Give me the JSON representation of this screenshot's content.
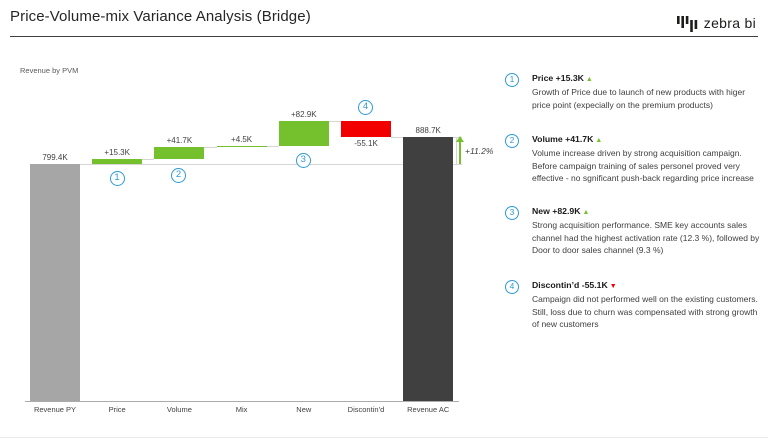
{
  "header": {
    "title": "Price-Volume-mix Variance Analysis (Bridge)",
    "logo": {
      "text": "zebra bi"
    }
  },
  "chart_data": {
    "type": "waterfall",
    "title": "Revenue by PVM",
    "categories": [
      "Revenue PY",
      "Price",
      "Volume",
      "Mix",
      "New",
      "Discontin’d",
      "Revenue AC"
    ],
    "values": [
      799.4,
      15.3,
      41.7,
      4.5,
      82.9,
      -55.1,
      888.7
    ],
    "roles": [
      "total",
      "delta",
      "delta",
      "delta",
      "delta",
      "delta",
      "total"
    ],
    "bar_labels": [
      "799.4K",
      "+15.3K",
      "+41.7K",
      "+4.5K",
      "+82.9K",
      "-55.1K",
      "888.7K"
    ],
    "unit": "K",
    "value_axis": {
      "min": 0,
      "max": 1015,
      "visible": false
    },
    "grid": false,
    "legend": "none",
    "total_variance": {
      "label": "+11.2%",
      "from_category": "Revenue PY",
      "to_category": "Revenue AC"
    },
    "markers": [
      {
        "n": "1",
        "category": "Price"
      },
      {
        "n": "2",
        "category": "Volume"
      },
      {
        "n": "3",
        "category": "New"
      },
      {
        "n": "4",
        "category": "Discontin’d"
      }
    ],
    "colors": {
      "total_start": "#A6A6A6",
      "total_end": "#404040",
      "positive": "#75C12D",
      "negative": "#F20000",
      "marker_blue": "#2E9BD8",
      "connector": "#D6D6D6",
      "axis": "#ABABAB"
    }
  },
  "annotations": [
    {
      "n": "1",
      "title": "Price",
      "value": "+15.3K",
      "direction": "up",
      "body": "Growth of Price due to launch of new products with higer price point (expecially on the premium products)"
    },
    {
      "n": "2",
      "title": "Volume",
      "value": "+41.7K",
      "direction": "up",
      "body": "Volume increase driven by strong acquisition campaign. Before campaign training of sales personel proved very effective - no sgnificant push-back regarding price increase"
    },
    {
      "n": "3",
      "title": "New",
      "value": "+82.9K",
      "direction": "up",
      "body": "Strong acquisition performance. SME key accounts sales channel had the highest activation rate (12.3 %), followed by Door to door sales channel (9.3 %)"
    },
    {
      "n": "4",
      "title": "Discontin’d",
      "value": "-55.1K",
      "direction": "down",
      "body": "Campaign did not performed well on the existing customers. Still, loss due to churn was compensated with strong growth of new customers"
    }
  ]
}
